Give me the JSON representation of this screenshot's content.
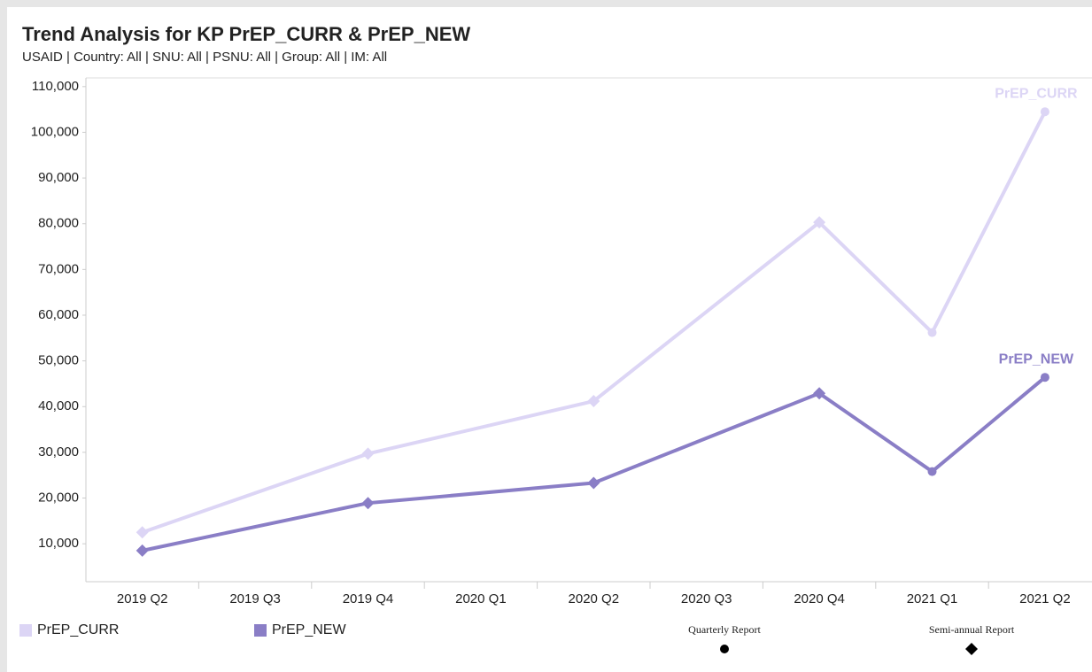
{
  "chart_data": {
    "type": "line",
    "title": "Trend Analysis for KP PrEP_CURR & PrEP_NEW",
    "subtitle": "USAID | Country: All | SNU: All | PSNU: All | Group: All | IM: All",
    "categories": [
      "2019 Q2",
      "2019 Q3",
      "2019 Q4",
      "2020 Q1",
      "2020 Q2",
      "2020 Q3",
      "2020 Q4",
      "2021 Q1",
      "2021 Q2"
    ],
    "series": [
      {
        "name": "PrEP_CURR",
        "color": "#dcd5f5",
        "x": [
          "2019 Q2",
          "2019 Q4",
          "2020 Q2",
          "2020 Q4",
          "2021 Q1",
          "2021 Q2"
        ],
        "values": [
          12500,
          29700,
          41200,
          80300,
          56200,
          104500
        ],
        "markers": [
          "diamond",
          "diamond",
          "diamond",
          "diamond",
          "circle",
          "circle"
        ]
      },
      {
        "name": "PrEP_NEW",
        "color": "#8a7ec6",
        "x": [
          "2019 Q2",
          "2019 Q4",
          "2020 Q2",
          "2020 Q4",
          "2021 Q1",
          "2021 Q2"
        ],
        "values": [
          8500,
          18900,
          23300,
          42900,
          25800,
          46400
        ],
        "markers": [
          "diamond",
          "diamond",
          "diamond",
          "diamond",
          "circle",
          "circle"
        ]
      }
    ],
    "marker_legend": [
      {
        "label": "Quarterly Report",
        "marker": "circle"
      },
      {
        "label": "Semi-annual Report",
        "marker": "diamond"
      }
    ],
    "ylim": [
      1700,
      111900
    ],
    "yticks": [
      {
        "value": 10000,
        "label": "10,000"
      },
      {
        "value": 20000,
        "label": "20,000"
      },
      {
        "value": 30000,
        "label": "30,000"
      },
      {
        "value": 40000,
        "label": "40,000"
      },
      {
        "value": 50000,
        "label": "50,000"
      },
      {
        "value": 60000,
        "label": "60,000"
      },
      {
        "value": 70000,
        "label": "70,000"
      },
      {
        "value": 80000,
        "label": "80,000"
      },
      {
        "value": 90000,
        "label": "90,000"
      },
      {
        "value": 100000,
        "label": "100,000"
      },
      {
        "value": 110000,
        "label": "110,000"
      }
    ],
    "grid": false
  }
}
